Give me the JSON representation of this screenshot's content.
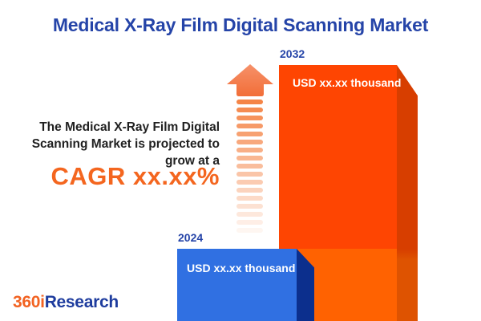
{
  "header": {
    "title": "Medical X-Ray Film Digital Scanning Market"
  },
  "promo": {
    "line1": "The Medical X-Ray Film Digital",
    "line2": "Scanning Market is projected to",
    "line3": "grow at a",
    "cagr": "CAGR xx.xx%"
  },
  "bars": {
    "y2032": {
      "year": "2032",
      "value": "USD xx.xx thousand",
      "face_color": "#FE4502",
      "face_color_lower": "#FF6201",
      "side_color": "#D73E00"
    },
    "y2024": {
      "year": "2024",
      "value": "USD xx.xx thousand",
      "face_color": "#3070E2",
      "side_color": "#0C2F8D"
    }
  },
  "chart_data": {
    "type": "bar",
    "title": "Medical X-Ray Film Digital Scanning Market",
    "categories": [
      "2024",
      "2032"
    ],
    "value_labels": [
      "USD xx.xx thousand",
      "USD xx.xx thousand"
    ],
    "values": [
      null,
      null
    ],
    "values_masked": true,
    "unit": "USD thousand",
    "relative_heights": [
      0.28,
      1.0
    ],
    "bar_colors": [
      "#3070E2",
      "#FE4502"
    ],
    "annotation": "The Medical X-Ray Film Digital Scanning Market is projected to grow at a CAGR xx.xx%",
    "legend": "none",
    "grid": false,
    "axes_labels": "none"
  },
  "icons": {
    "growth_arrow": "upward-striped-fade-arrow"
  },
  "colors": {
    "title_blue": "#2544A8",
    "cagr_orange": "#F4661F",
    "arrow_orange": "#F37B4E",
    "text_dark": "#212121",
    "logo_orange": "#F26322",
    "logo_blue": "#1E3C9E",
    "background": "#FFFFFF"
  },
  "logo": {
    "prefix": "360i",
    "suffix": "Research"
  }
}
